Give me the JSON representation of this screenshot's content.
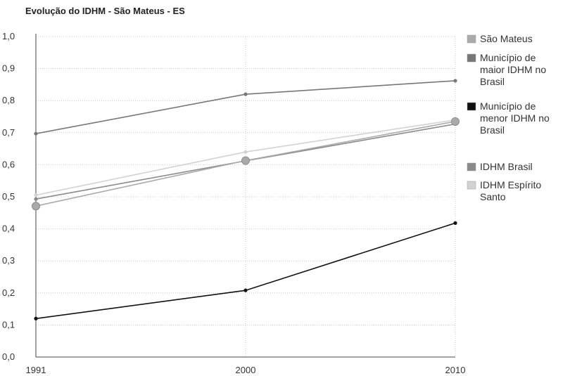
{
  "chart_data": {
    "type": "line",
    "title": "Evolução do IDHM - São Mateus - ES",
    "xlabel": "",
    "ylabel": "",
    "x": [
      "1991",
      "2000",
      "2010"
    ],
    "ylim": [
      0,
      1
    ],
    "yticks": [
      "0,0",
      "0,1",
      "0,2",
      "0,3",
      "0,4",
      "0,5",
      "0,6",
      "0,7",
      "0,8",
      "0,9",
      "1,0"
    ],
    "grid": true,
    "legend_position": "right",
    "series": [
      {
        "name": "São Mateus",
        "values": [
          0.471,
          0.613,
          0.735
        ],
        "color": "#aaaaaa",
        "marker": "large"
      },
      {
        "name": "Município de maior IDHM no Brasil",
        "values": [
          0.697,
          0.82,
          0.862
        ],
        "color": "#777777",
        "marker": "small"
      },
      {
        "name": "Município de menor IDHM no Brasil",
        "values": [
          0.12,
          0.208,
          0.418
        ],
        "color": "#111111",
        "marker": "small"
      },
      {
        "name": "IDHM Brasil",
        "values": [
          0.493,
          0.612,
          0.727
        ],
        "color": "#8a8a8a",
        "marker": "small"
      },
      {
        "name": "IDHM Espírito Santo",
        "values": [
          0.505,
          0.64,
          0.74
        ],
        "color": "#d2d2d2",
        "marker": "small"
      }
    ]
  }
}
